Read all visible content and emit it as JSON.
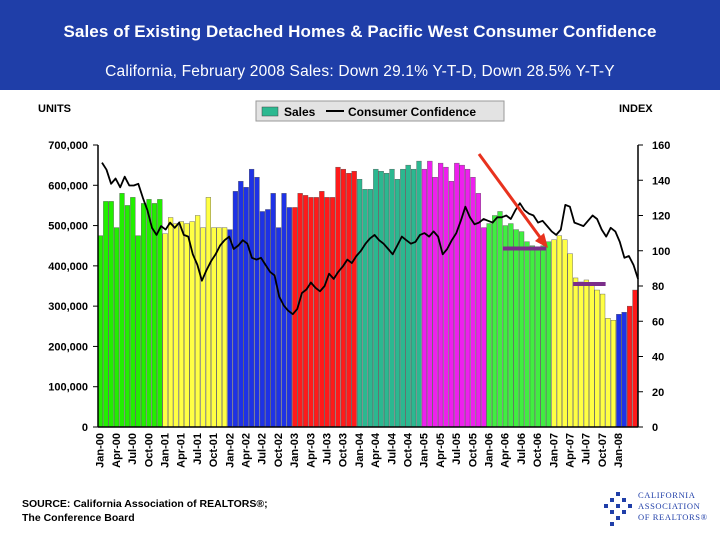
{
  "header": {
    "title": "Sales of Existing Detached Homes & Pacific West Consumer Confidence",
    "subtitle": "California, February 2008 Sales: Down 29.1% Y-T-D, Down 28.5% Y-T-Y"
  },
  "footer": {
    "source_line1": "SOURCE: California Association of REALTORS®;",
    "source_line2": "The Conference Board",
    "logo_line1": "CALIFORNIA",
    "logo_line2": "ASSOCIATION",
    "logo_line3": "OF REALTORS®"
  },
  "colors": {
    "header_bg": "#1f3ea8",
    "legend_sales": "#2bb890",
    "line": "#000000",
    "arrow": "#e8321e",
    "average_marker": "#7b2e8a",
    "year_colors": [
      "#22ee00",
      "#ffff44",
      "#1e32e6",
      "#ff1a1a",
      "#2bb890",
      "#ee1fee",
      "#40ee40",
      "#ffff44",
      "#1e32e6",
      "#ff1a1a"
    ]
  },
  "chart_data": {
    "type": "bar",
    "title": "Sales of Existing Detached Homes & Pacific West Consumer Confidence",
    "left_axis_label": "UNITS",
    "right_axis_label": "INDEX",
    "y_left_lim": [
      0,
      700000
    ],
    "y_right_lim": [
      0,
      160
    ],
    "y_left_ticks": [
      "0",
      "100,000",
      "200,000",
      "300,000",
      "400,000",
      "500,000",
      "600,000",
      "700,000"
    ],
    "y_right_ticks": [
      "0",
      "20",
      "40",
      "60",
      "80",
      "100",
      "120",
      "140",
      "160"
    ],
    "x_tick_labels": [
      "Jan-00",
      "Apr-00",
      "Jul-00",
      "Oct-00",
      "Jan-01",
      "Apr-01",
      "Jul-01",
      "Oct-01",
      "Jan-02",
      "Apr-02",
      "Jul-02",
      "Oct-02",
      "Jan-03",
      "Apr-03",
      "Jul-03",
      "Oct-03",
      "Jan-04",
      "Apr-04",
      "Jul-04",
      "Oct-04",
      "Jan-05",
      "Apr-05",
      "Jul-05",
      "Oct-05",
      "Jan-06",
      "Apr-06",
      "Jul-06",
      "Oct-06",
      "Jan-07",
      "Apr-07",
      "Jul-07",
      "Oct-07",
      "Jan-08"
    ],
    "legend": [
      "Sales",
      "Consumer Confidence"
    ],
    "years": [
      {
        "year": 2000,
        "sales": [
          475000,
          560000,
          560000,
          495000,
          580000,
          550000,
          570000,
          475000,
          555000,
          565000,
          555000,
          565000
        ]
      },
      {
        "year": 2001,
        "sales": [
          480000,
          520000,
          505000,
          510000,
          505000,
          510000,
          525000,
          495000,
          570000,
          495000,
          495000,
          495000
        ]
      },
      {
        "year": 2002,
        "sales": [
          490000,
          585000,
          610000,
          595000,
          640000,
          620000,
          535000,
          540000,
          580000,
          495000,
          580000,
          545000
        ]
      },
      {
        "year": 2003,
        "sales": [
          545000,
          580000,
          575000,
          570000,
          570000,
          585000,
          570000,
          570000,
          645000,
          640000,
          630000,
          635000
        ]
      },
      {
        "year": 2004,
        "sales": [
          615000,
          590000,
          590000,
          640000,
          635000,
          630000,
          640000,
          615000,
          640000,
          650000,
          640000,
          660000
        ]
      },
      {
        "year": 2005,
        "sales": [
          640000,
          660000,
          620000,
          655000,
          645000,
          610000,
          655000,
          650000,
          640000,
          620000,
          580000,
          495000
        ]
      },
      {
        "year": 2006,
        "sales": [
          505000,
          525000,
          535000,
          500000,
          505000,
          490000,
          485000,
          460000,
          450000,
          440000,
          450000,
          460000
        ]
      },
      {
        "year": 2007,
        "sales": [
          465000,
          475000,
          465000,
          430000,
          370000,
          360000,
          365000,
          355000,
          340000,
          330000,
          270000,
          265000
        ]
      },
      {
        "year": 2008,
        "sales": [
          280000,
          285000
        ],
        "colorIndex": 8
      },
      {
        "year": 2008,
        "sales": [
          300000,
          340000
        ],
        "colorIndex": 9
      }
    ],
    "consumer_confidence": [
      150,
      146,
      138,
      141,
      136,
      142,
      137,
      137,
      138,
      130,
      123,
      113,
      109,
      114,
      112,
      116,
      113,
      116,
      109,
      108,
      98,
      92,
      83,
      89,
      94,
      98,
      103,
      106,
      108,
      101,
      103,
      106,
      104,
      96,
      95,
      96,
      92,
      88,
      86,
      74,
      69,
      66,
      64,
      67,
      76,
      78,
      82,
      79,
      77,
      80,
      87,
      84,
      88,
      91,
      95,
      93,
      97,
      100,
      104,
      107,
      109,
      106,
      104,
      101,
      98,
      103,
      108,
      106,
      104,
      105,
      109,
      110,
      108,
      111,
      108,
      98,
      101,
      106,
      110,
      117,
      125,
      119,
      115,
      116,
      118,
      117,
      116,
      119,
      119,
      120,
      118,
      123,
      127,
      123,
      121,
      120,
      116,
      117,
      114,
      111,
      109,
      112,
      126,
      125,
      116,
      115,
      114,
      117,
      120,
      118,
      112,
      108,
      113,
      111,
      105,
      96,
      97,
      92,
      84
    ]
  }
}
